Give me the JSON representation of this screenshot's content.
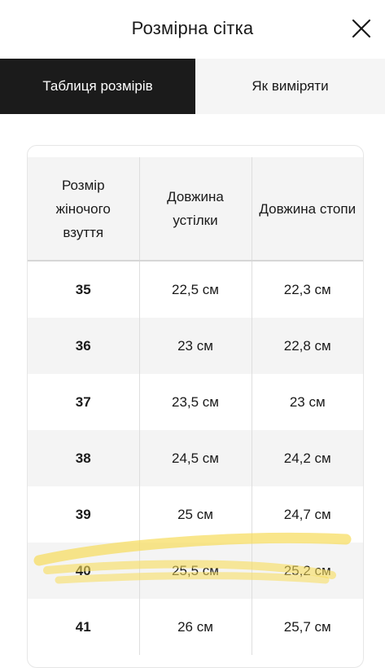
{
  "header": {
    "title": "Розмірна сітка",
    "close_icon": "close-icon"
  },
  "tabs": [
    {
      "label": "Таблиця розмірів",
      "active": true
    },
    {
      "label": "Як виміряти",
      "active": false
    }
  ],
  "table": {
    "headers": [
      "Розмір жіночого взуття",
      "Довжина устілки",
      "Довжина стопи"
    ],
    "rows": [
      {
        "size": "35",
        "insole": "22,5 см",
        "foot": "22,3 см"
      },
      {
        "size": "36",
        "insole": "23 см",
        "foot": "22,8 см"
      },
      {
        "size": "37",
        "insole": "23,5 см",
        "foot": "23 см"
      },
      {
        "size": "38",
        "insole": "24,5 см",
        "foot": "24,2 см"
      },
      {
        "size": "39",
        "insole": "25 см",
        "foot": "24,7 см"
      },
      {
        "size": "40",
        "insole": "25,5 см",
        "foot": "25,2 см"
      },
      {
        "size": "41",
        "insole": "26 см",
        "foot": "25,7 см"
      }
    ]
  },
  "colors": {
    "active_tab": "#1b1b1b",
    "inactive_tab": "#f5f5f5",
    "stripe": "#f4f4f4",
    "highlighter": "#f7dc5a"
  }
}
